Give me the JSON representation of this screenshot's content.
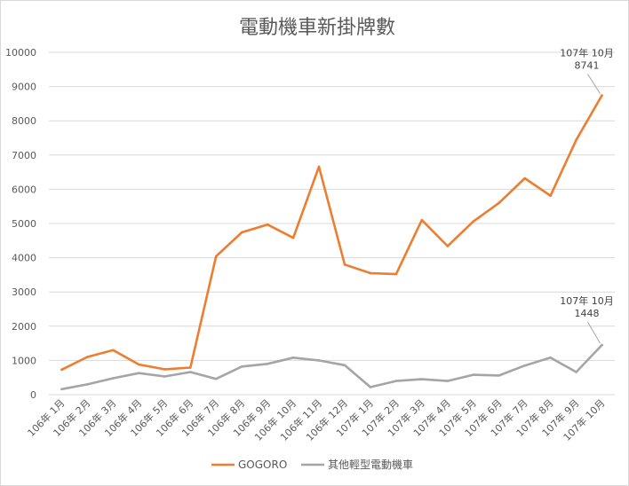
{
  "chart_data": {
    "type": "line",
    "title": "電動機車新掛牌數",
    "xlabel": "",
    "ylabel": "",
    "ylim": [
      0,
      10000
    ],
    "yticks": [
      0,
      1000,
      2000,
      3000,
      4000,
      5000,
      6000,
      7000,
      8000,
      9000,
      10000
    ],
    "grid": true,
    "legend_position": "bottom",
    "categories": [
      "106年 1月",
      "106年 2月",
      "106年 3月",
      "106年 4月",
      "106年 5月",
      "106年 6月",
      "106年 7月",
      "106年 8月",
      "106年 9月",
      "106年 10月",
      "106年 11月",
      "106年 12月",
      "107年 1月",
      "107年 2月",
      "107年 3月",
      "107年 4月",
      "107年 5月",
      "107年 6月",
      "107年 7月",
      "107年 8月",
      "107年 9月",
      "107年 10月"
    ],
    "series": [
      {
        "name": "GOGORO",
        "color": "#ED7D31",
        "values": [
          730,
          1100,
          1300,
          880,
          740,
          790,
          4040,
          4740,
          4970,
          4580,
          6660,
          3800,
          3550,
          3520,
          5100,
          4340,
          5060,
          5600,
          6320,
          5810,
          7440,
          8741
        ],
        "annotation": {
          "label_line1": "107年 10月",
          "label_line2": "8741"
        }
      },
      {
        "name": "其他輕型電動機車",
        "color": "#A5A5A5",
        "values": [
          160,
          300,
          480,
          630,
          530,
          660,
          460,
          820,
          900,
          1080,
          1000,
          860,
          220,
          400,
          450,
          400,
          580,
          560,
          850,
          1080,
          660,
          1448
        ],
        "annotation": {
          "label_line1": "107年 10月",
          "label_line2": "1448"
        }
      }
    ]
  }
}
